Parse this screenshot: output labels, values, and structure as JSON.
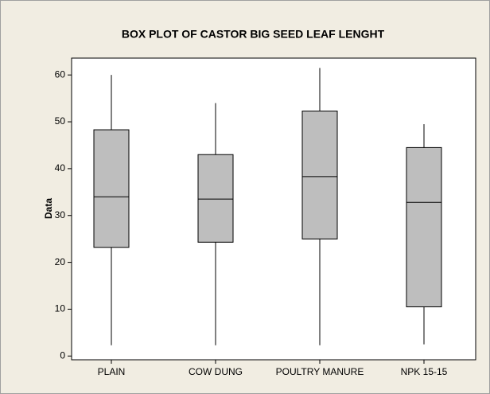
{
  "chart_data": {
    "type": "box",
    "title": "BOX PLOT OF CASTOR BIG SEED LEAF LENGHT",
    "y_label": "Data",
    "categories": [
      "PLAIN",
      "COW DUNG",
      "POULTRY MANURE",
      "NPK 15-15"
    ],
    "boxes": [
      {
        "min": 2.3,
        "q1": 23.2,
        "median": 34,
        "q3": 48.3,
        "max": 60
      },
      {
        "min": 2.3,
        "q1": 24.3,
        "median": 33.5,
        "q3": 43,
        "max": 54
      },
      {
        "min": 2.3,
        "q1": 25,
        "median": 38.3,
        "q3": 52.3,
        "max": 61.5
      },
      {
        "min": 2.5,
        "q1": 10.5,
        "median": 32.8,
        "q3": 44.5,
        "max": 49.5
      }
    ],
    "color": "#bebebe",
    "ylim": [
      -0.8,
      63.6
    ],
    "yticks": [
      0,
      10,
      20,
      30,
      40,
      50,
      60
    ]
  }
}
